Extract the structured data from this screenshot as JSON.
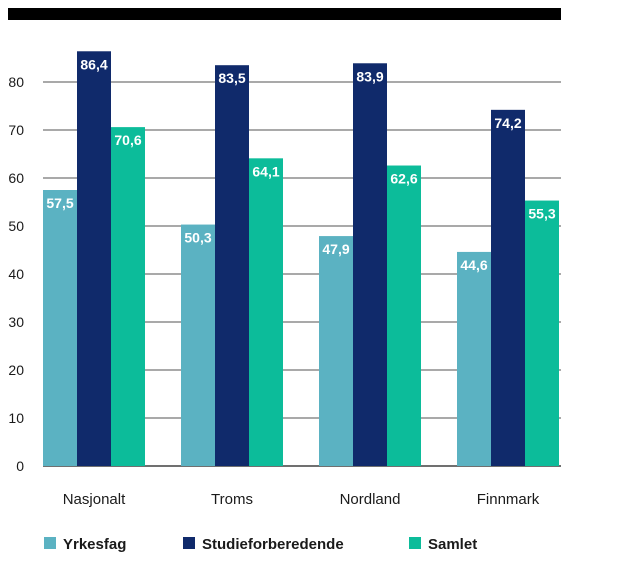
{
  "chart_data": {
    "type": "bar",
    "categories": [
      "Nasjonalt",
      "Troms",
      "Nordland",
      "Finnmark"
    ],
    "series": [
      {
        "name": "Yrkesfag",
        "values": [
          57.5,
          50.3,
          47.9,
          44.6
        ],
        "labels": [
          "57,5",
          "50,3",
          "47,9",
          "44,6"
        ]
      },
      {
        "name": "Studieforberedende",
        "values": [
          86.4,
          83.5,
          83.9,
          74.2
        ],
        "labels": [
          "86,4",
          "83,5",
          "83,9",
          "74,2"
        ]
      },
      {
        "name": "Samlet",
        "values": [
          70.6,
          64.1,
          62.6,
          55.3
        ],
        "labels": [
          "70,6",
          "64,1",
          "62,6",
          "55,3"
        ]
      }
    ],
    "yticks": [
      0,
      10,
      20,
      30,
      40,
      50,
      60,
      70,
      80
    ],
    "ylim": [
      0,
      90
    ],
    "grid": true,
    "legend_position": "bottom",
    "colors": {
      "Yrkesfag": "#5bb2c2",
      "Studieforberedende": "#102a6b",
      "Samlet": "#0cbc9a",
      "title_bar": "#000000",
      "grid": "#1a1a1a"
    },
    "title": "",
    "xlabel": "",
    "ylabel": ""
  }
}
